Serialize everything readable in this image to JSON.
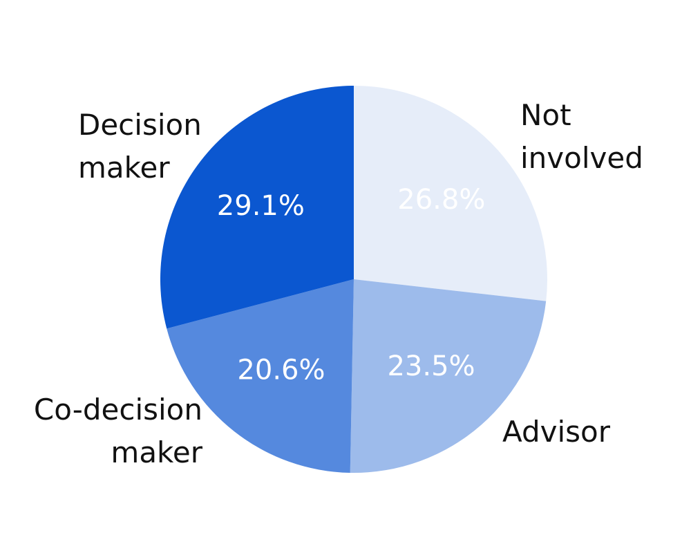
{
  "chart_data": {
    "type": "pie",
    "categories": [
      "Not involved",
      "Advisor",
      "Co-decision maker",
      "Decision maker"
    ],
    "values": [
      26.8,
      23.5,
      20.6,
      29.1
    ],
    "value_labels": [
      "26.8%",
      "23.5%",
      "20.6%",
      "29.1%"
    ],
    "colors": [
      "#e6edf9",
      "#9dbbeb",
      "#5589de",
      "#0b57d0"
    ]
  }
}
